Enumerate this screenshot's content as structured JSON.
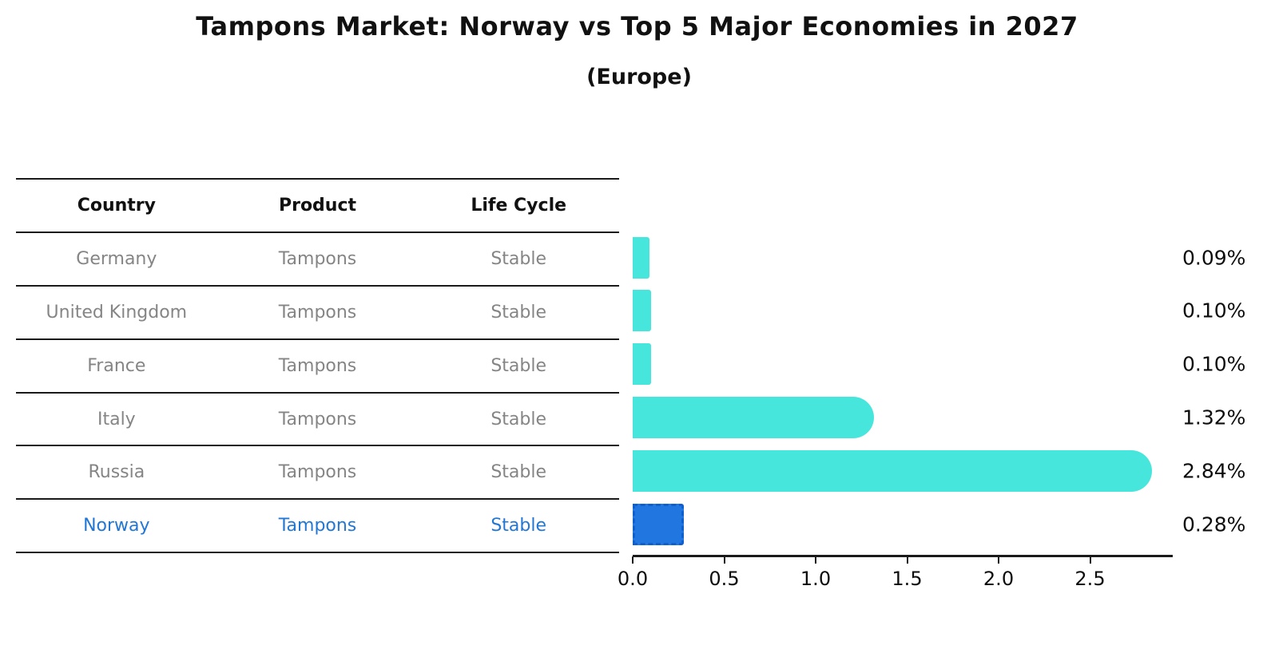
{
  "title": "Tampons Market: Norway vs Top 5 Major Economies in 2027",
  "subtitle": "(Europe)",
  "table": {
    "headers": [
      "Country",
      "Product",
      "Life Cycle"
    ],
    "rows": [
      {
        "country": "Germany",
        "product": "Tampons",
        "life_cycle": "Stable",
        "highlight": false
      },
      {
        "country": "United Kingdom",
        "product": "Tampons",
        "life_cycle": "Stable",
        "highlight": false
      },
      {
        "country": "France",
        "product": "Tampons",
        "life_cycle": "Stable",
        "highlight": false
      },
      {
        "country": "Italy",
        "product": "Tampons",
        "life_cycle": "Stable",
        "highlight": false
      },
      {
        "country": "Russia",
        "product": "Tampons",
        "life_cycle": "Stable",
        "highlight": false
      },
      {
        "country": "Norway",
        "product": "Tampons",
        "life_cycle": "Stable",
        "highlight": true
      }
    ]
  },
  "chart_data": {
    "type": "bar",
    "orientation": "horizontal",
    "title": "Tampons Market: Norway vs Top 5 Major Economies in 2027 (Europe)",
    "categories": [
      "Germany",
      "United Kingdom",
      "France",
      "Italy",
      "Russia",
      "Norway"
    ],
    "values": [
      0.09,
      0.1,
      0.1,
      1.32,
      2.84,
      0.28
    ],
    "value_labels": [
      "0.09%",
      "0.10%",
      "0.10%",
      "1.32%",
      "2.84%",
      "0.28%"
    ],
    "unit": "percent",
    "xlabel": "",
    "ylabel": "",
    "xlim": [
      0,
      2.97
    ],
    "xticks": [
      0.0,
      0.5,
      1.0,
      1.5,
      2.0,
      2.5
    ],
    "xtick_labels": [
      "0.0",
      "0.5",
      "1.0",
      "1.5",
      "2.0",
      "2.5"
    ],
    "grid": false,
    "legend": false,
    "highlight_index": 5,
    "colors": {
      "bar_default": "#46e6dc",
      "bar_highlight": "#2176e0",
      "bar_highlight_border": "#0f5fd0",
      "highlight_text": "#2377d4",
      "table_text": "#858585",
      "header_text": "#111111"
    }
  }
}
